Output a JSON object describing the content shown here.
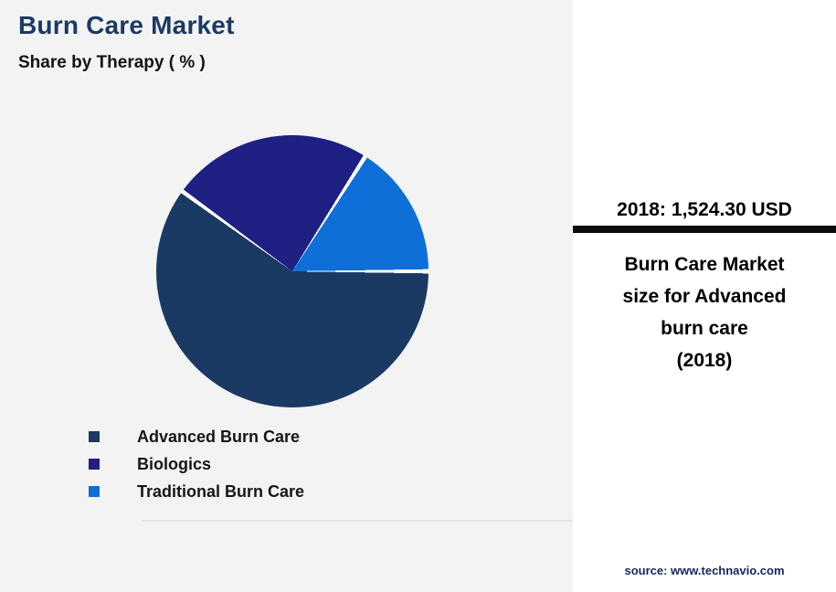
{
  "header": {
    "title": "Burn Care Market",
    "subtitle": "Share by Therapy ( % )"
  },
  "chart_data": {
    "type": "pie",
    "title": "Burn Care Market",
    "subtitle": "Share by Therapy ( % )",
    "labels": [
      "Advanced Burn Care",
      "Biologics",
      "Traditional Burn Care"
    ],
    "values": [
      60,
      24,
      16
    ],
    "unit": "%",
    "colors": [
      "#1a3a64",
      "#1e2083",
      "#0e6fd8"
    ],
    "slice_separator_color": "#ffffff",
    "start_angle_deg": 90,
    "direction": "clockwise",
    "legend_position": "bottom-left"
  },
  "side_panel": {
    "stat_year_label": "2018:",
    "stat_value": "1,524.30 USD",
    "description_lines": [
      "Burn Care Market",
      "size for Advanced",
      "burn care",
      "(2018)"
    ],
    "source": "source: www.technavio.com"
  },
  "theme": {
    "background": "#f3f3f3",
    "panel_background": "#ffffff",
    "title_color": "#1b3a64",
    "divider_bar_color": "#0c0c0c",
    "source_text_color": "#13275e"
  }
}
